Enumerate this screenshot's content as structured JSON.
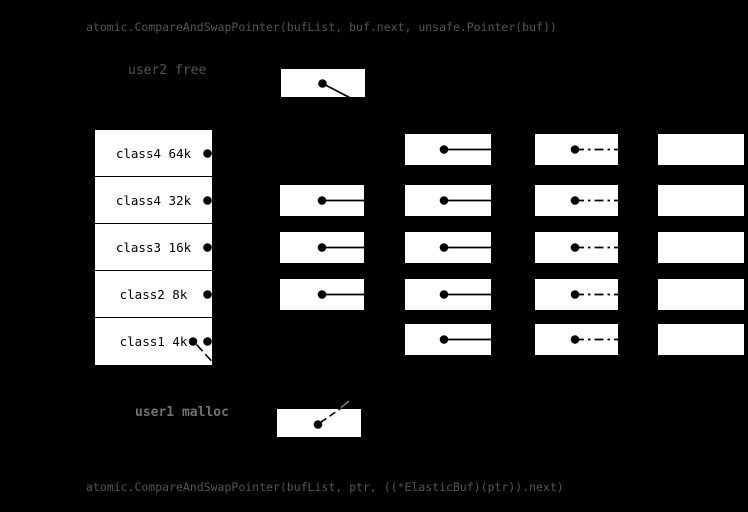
{
  "colors": {
    "background": "#000000",
    "node_fill": "#ffffff",
    "ink": "#000000",
    "code_text": "#555555",
    "user2_text": "#545454",
    "user1_text": "#707070",
    "trace": "#8a8a8a"
  },
  "code_top": {
    "text": "atomic.CompareAndSwapPointer(bufList, buf.next, unsafe.Pointer(buf))"
  },
  "code_bottom": {
    "text": "atomic.CompareAndSwapPointer(bufList, ptr, ((*ElasticBuf)(ptr)).next)"
  },
  "user2": {
    "label": "user2 free"
  },
  "user1": {
    "label": "user1 malloc"
  },
  "size_class_table": {
    "rows": [
      {
        "label": "class4 64k"
      },
      {
        "label": "class4 32k"
      },
      {
        "label": "class3 16k"
      },
      {
        "label": "class2 8k"
      },
      {
        "label": "class1 4k"
      }
    ]
  },
  "free_list_grid": {
    "columns": [
      {
        "id": "stage1",
        "pointer_style": "solid",
        "rows_present": [
          2,
          3,
          4
        ]
      },
      {
        "id": "stage2",
        "pointer_style": "solid",
        "rows_present": [
          1,
          2,
          3,
          4,
          5
        ]
      },
      {
        "id": "stage3",
        "pointer_style": "dashdot",
        "rows_present": [
          1,
          2,
          3,
          4,
          5
        ]
      },
      {
        "id": "stage4",
        "pointer_style": "empty",
        "rows_present": [
          1,
          2,
          3,
          4,
          5
        ]
      }
    ]
  }
}
